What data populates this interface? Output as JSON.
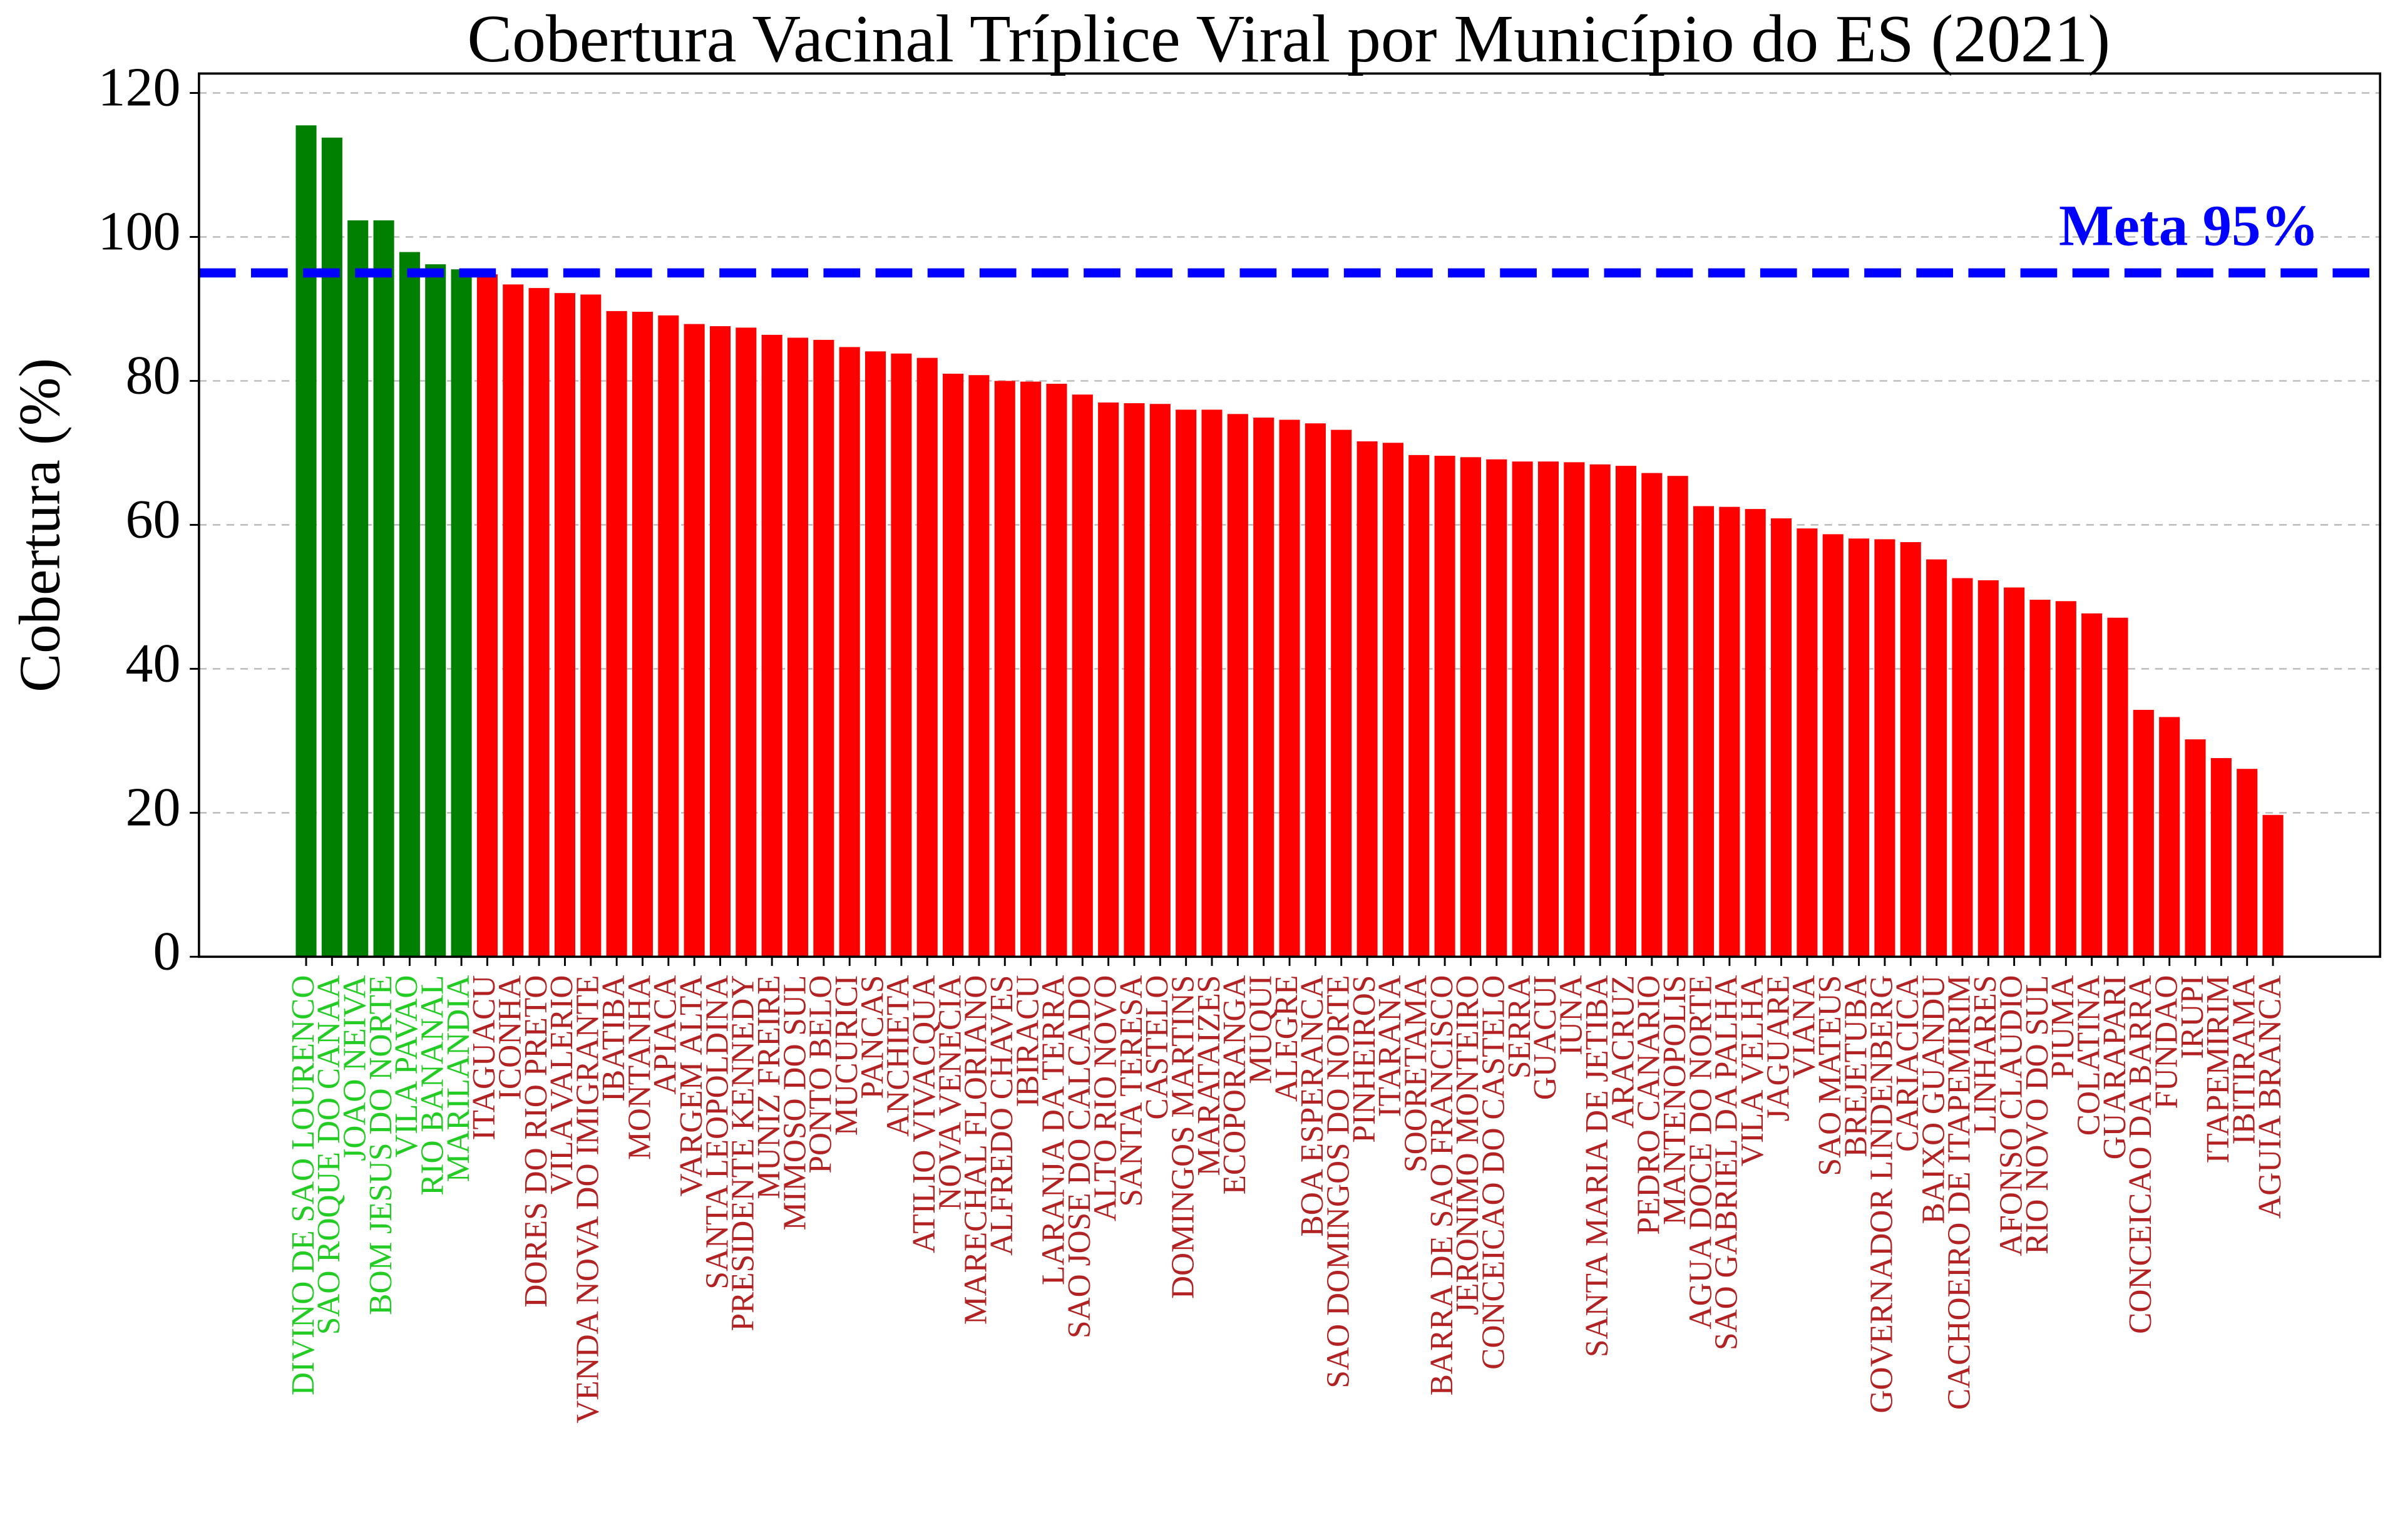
{
  "chart_data": {
    "type": "bar",
    "title": "Cobertura Vacinal Tríplice Viral por Município do ES (2021)",
    "y_label": "Cobertura (%)",
    "target": {
      "value": 95,
      "label": "Meta 95%",
      "color": "#0000ff"
    },
    "bar_colors": {
      "above": "#008000",
      "below": "#ff0000"
    },
    "label_colors": {
      "above": "#22cc22",
      "below": "#b22222"
    },
    "grid": true,
    "ylim": [
      0,
      122.7
    ],
    "yticks": [
      0,
      20,
      40,
      60,
      80,
      100,
      120
    ],
    "categories": [
      "DIVINO DE SAO LOURENCO",
      "SAO ROQUE DO CANAA",
      "JOAO NEIVA",
      "BOM JESUS DO NORTE",
      "VILA PAVAO",
      "RIO BANANAL",
      "MARILANDIA",
      "ITAGUACU",
      "ICONHA",
      "DORES DO RIO PRETO",
      "VILA VALERIO",
      "VENDA NOVA DO IMIGRANTE",
      "IBATIBA",
      "MONTANHA",
      "APIACA",
      "VARGEM ALTA",
      "SANTA LEOPOLDINA",
      "PRESIDENTE KENNEDY",
      "MUNIZ FREIRE",
      "MIMOSO DO SUL",
      "PONTO BELO",
      "MUCURICI",
      "PANCAS",
      "ANCHIETA",
      "ATILIO VIVACQUA",
      "NOVA VENECIA",
      "MARECHAL FLORIANO",
      "ALFREDO CHAVES",
      "IBIRACU",
      "LARANJA DA TERRA",
      "SAO JOSE DO CALCADO",
      "ALTO RIO NOVO",
      "SANTA TERESA",
      "CASTELO",
      "DOMINGOS MARTINS",
      "MARATAIZES",
      "ECOPORANGA",
      "MUQUI",
      "ALEGRE",
      "BOA ESPERANCA",
      "SAO DOMINGOS DO NORTE",
      "PINHEIROS",
      "ITARANA",
      "SOORETAMA",
      "BARRA DE SAO FRANCISCO",
      "JERONIMO MONTEIRO",
      "CONCEICAO DO CASTELO",
      "SERRA",
      "GUACUI",
      "IUNA",
      "SANTA MARIA DE JETIBA",
      "ARACRUZ",
      "PEDRO CANARIO",
      "MANTENOPOLIS",
      "AGUA DOCE DO NORTE",
      "SAO GABRIEL DA PALHA",
      "VILA VELHA",
      "JAGUARE",
      "VIANA",
      "SAO MATEUS",
      "BREJETUBA",
      "GOVERNADOR LINDENBERG",
      "CARIACICA",
      "BAIXO GUANDU",
      "CACHOEIRO DE ITAPEMIRIM",
      "LINHARES",
      "AFONSO CLAUDIO",
      "RIO NOVO DO SUL",
      "PIUMA",
      "COLATINA",
      "GUARAPARI",
      "CONCEICAO DA BARRA",
      "FUNDAO",
      "IRUPI",
      "ITAPEMIRIM",
      "IBITIRAMA",
      "AGUIA BRANCA"
    ],
    "values": [
      115.5,
      113.8,
      102.3,
      102.3,
      97.9,
      96.2,
      95.5,
      94.8,
      93.4,
      92.9,
      92.2,
      92.0,
      89.7,
      89.6,
      89.1,
      87.9,
      87.6,
      87.4,
      86.4,
      86.0,
      85.7,
      84.7,
      84.1,
      83.8,
      83.2,
      81.0,
      80.8,
      80.0,
      79.9,
      79.6,
      78.1,
      77.0,
      76.9,
      76.8,
      76.0,
      76.0,
      75.4,
      74.9,
      74.6,
      74.1,
      73.2,
      71.6,
      71.4,
      69.7,
      69.6,
      69.4,
      69.1,
      68.8,
      68.8,
      68.7,
      68.4,
      68.2,
      67.2,
      66.8,
      62.6,
      62.5,
      62.2,
      60.9,
      59.5,
      58.7,
      58.1,
      58.0,
      57.6,
      55.2,
      52.6,
      52.3,
      51.3,
      49.6,
      49.4,
      47.7,
      47.1,
      34.3,
      33.3,
      30.2,
      27.6,
      26.1,
      19.7
    ]
  }
}
